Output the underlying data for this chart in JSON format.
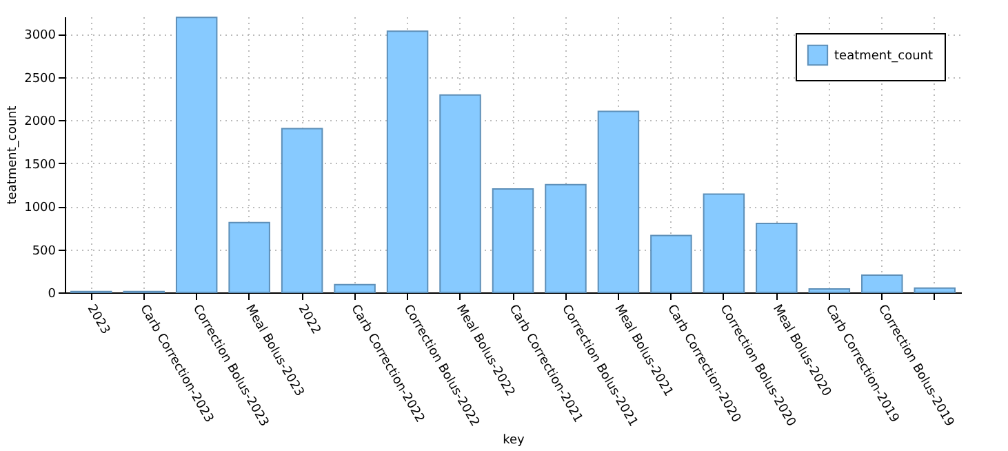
{
  "chart_data": {
    "type": "bar",
    "xlabel": "key",
    "ylabel": "teatment_count",
    "categories": [
      "2023",
      "Carb Correction-2023",
      "Correction Bolus-2023",
      "Meal Bolus-2023",
      "2022",
      "Carb Correction-2022",
      "Correction Bolus-2022",
      "Meal Bolus-2022",
      "Carb Correction-2021",
      "Correction Bolus-2021",
      "Meal Bolus-2021",
      "Carb Correction-2020",
      "Correction Bolus-2020",
      "Meal Bolus-2020",
      "Carb Correction-2019",
      "Correction Bolus-2019",
      null
    ],
    "series": [
      {
        "name": "teatment_count",
        "color": "#87caff",
        "values": [
          10,
          10,
          3190,
          810,
          1900,
          90,
          3030,
          2290,
          1200,
          1250,
          2100,
          660,
          1140,
          800,
          40,
          200,
          50
        ]
      }
    ],
    "ylim": [
      0,
      3200
    ],
    "yticks": [
      0,
      500,
      1000,
      1500,
      2000,
      2500,
      3000
    ],
    "grid": true,
    "legend": "top right"
  }
}
